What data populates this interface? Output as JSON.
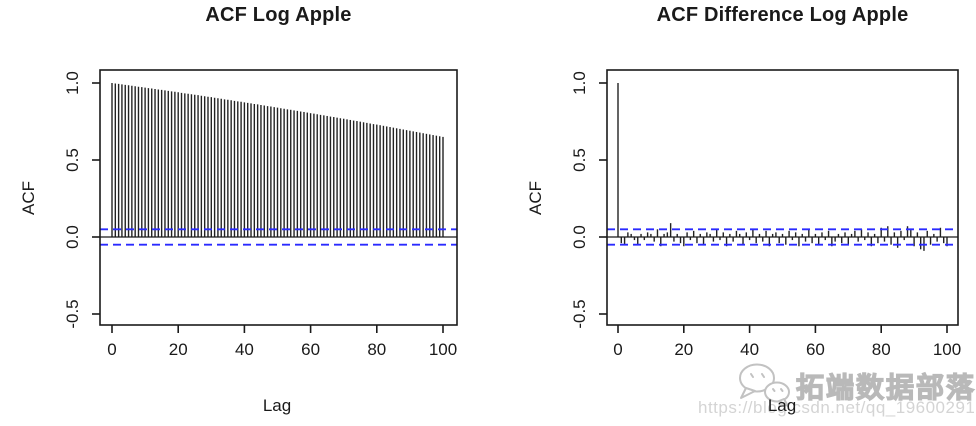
{
  "page": {
    "background": "#ffffff"
  },
  "style": {
    "bar_color": "#222222",
    "axis_color": "#1a1a1a",
    "text_color": "#1a1a1a",
    "conf_color": "#2a2aff"
  },
  "watermark": {
    "icon": "wechat-icon",
    "brand": "拓端数据部落",
    "url": "https://blog.csdn.net/qq_19600291"
  },
  "chart_data": [
    {
      "type": "bar",
      "title": "ACF Log Apple",
      "xlabel": "Lag",
      "ylabel": "ACF",
      "lag_start": 0,
      "lag_end": 100,
      "xticks": [
        0,
        20,
        40,
        60,
        80,
        100
      ],
      "yticks": [
        -0.5,
        0,
        0.5,
        1
      ],
      "ylim": [
        -0.57,
        1.08
      ],
      "xlim": [
        -4,
        104
      ],
      "grid": false,
      "legend": "none",
      "conf_level": 0.05,
      "conf_style": "dashed blue horizontal bands",
      "values": [
        1.0,
        0.997,
        0.994,
        0.991,
        0.988,
        0.985,
        0.982,
        0.979,
        0.976,
        0.973,
        0.97,
        0.967,
        0.964,
        0.961,
        0.958,
        0.955,
        0.952,
        0.949,
        0.946,
        0.943,
        0.94,
        0.936,
        0.933,
        0.93,
        0.927,
        0.924,
        0.921,
        0.917,
        0.914,
        0.911,
        0.908,
        0.904,
        0.901,
        0.898,
        0.894,
        0.891,
        0.888,
        0.884,
        0.881,
        0.878,
        0.874,
        0.871,
        0.868,
        0.864,
        0.861,
        0.857,
        0.854,
        0.85,
        0.847,
        0.843,
        0.84,
        0.836,
        0.833,
        0.829,
        0.826,
        0.822,
        0.819,
        0.815,
        0.812,
        0.808,
        0.804,
        0.801,
        0.797,
        0.793,
        0.79,
        0.786,
        0.782,
        0.779,
        0.775,
        0.771,
        0.768,
        0.764,
        0.76,
        0.756,
        0.753,
        0.749,
        0.745,
        0.741,
        0.737,
        0.733,
        0.73,
        0.726,
        0.722,
        0.718,
        0.714,
        0.71,
        0.706,
        0.702,
        0.698,
        0.694,
        0.69,
        0.686,
        0.682,
        0.678,
        0.674,
        0.67,
        0.666,
        0.662,
        0.658,
        0.654,
        0.65
      ]
    },
    {
      "type": "bar",
      "title": "ACF Difference Log Apple",
      "xlabel": "Lag",
      "ylabel": "ACF",
      "lag_start": 0,
      "lag_end": 100,
      "xticks": [
        0,
        20,
        40,
        60,
        80,
        100
      ],
      "yticks": [
        -0.5,
        0,
        0.5,
        1
      ],
      "ylim": [
        -0.57,
        1.08
      ],
      "xlim": [
        -4,
        104
      ],
      "grid": false,
      "legend": "none",
      "conf_level": 0.05,
      "conf_style": "dashed blue horizontal bands",
      "values": [
        1.0,
        -0.04,
        -0.05,
        0.03,
        0.02,
        -0.02,
        -0.05,
        0.02,
        -0.02,
        0.03,
        0.02,
        -0.03,
        0.05,
        -0.06,
        0.02,
        0.03,
        0.09,
        -0.03,
        0.02,
        -0.04,
        -0.06,
        0.03,
        -0.02,
        0.04,
        -0.04,
        0.02,
        -0.05,
        0.03,
        0.02,
        -0.03,
        0.05,
        -0.02,
        0.03,
        -0.06,
        0.02,
        -0.03,
        0.04,
        0.02,
        -0.05,
        0.03,
        -0.02,
        0.05,
        -0.04,
        0.02,
        -0.03,
        0.04,
        -0.06,
        0.02,
        0.03,
        -0.04,
        0.02,
        -0.05,
        0.04,
        -0.02,
        0.03,
        -0.06,
        0.02,
        -0.03,
        0.05,
        -0.04,
        0.02,
        -0.05,
        0.03,
        -0.02,
        0.04,
        -0.06,
        -0.03,
        0.02,
        -0.04,
        0.03,
        -0.05,
        0.02,
        0.04,
        -0.03,
        0.05,
        -0.02,
        0.03,
        -0.06,
        0.02,
        -0.04,
        0.06,
        -0.03,
        0.07,
        -0.05,
        0.03,
        -0.07,
        0.04,
        -0.02,
        0.07,
        0.05,
        -0.06,
        0.03,
        -0.08,
        -0.09,
        0.04,
        -0.05,
        0.02,
        -0.03,
        0.06,
        -0.04,
        -0.06
      ]
    }
  ]
}
